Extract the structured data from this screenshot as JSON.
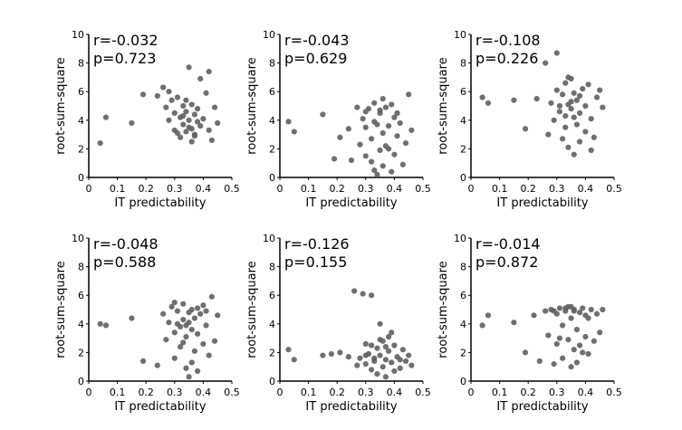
{
  "chart_data": [
    {
      "type": "scatter",
      "xlabel": "IT predictability",
      "ylabel": "root-sum-square",
      "xlim": [
        0,
        0.5
      ],
      "ylim": [
        0,
        10
      ],
      "xticks": [
        "0",
        "0.1",
        "0.2",
        "0.3",
        "0.4",
        "0.5"
      ],
      "yticks": [
        "0",
        "2",
        "4",
        "6",
        "8",
        "10"
      ],
      "annotations": [
        "r=-0.032",
        "p=0.723"
      ],
      "point_color": "#5f5f5f",
      "points": [
        [
          0.04,
          2.4
        ],
        [
          0.06,
          4.2
        ],
        [
          0.15,
          3.8
        ],
        [
          0.19,
          5.8
        ],
        [
          0.24,
          5.7
        ],
        [
          0.26,
          6.3
        ],
        [
          0.27,
          4.9
        ],
        [
          0.28,
          6.0
        ],
        [
          0.29,
          5.4
        ],
        [
          0.3,
          3.3
        ],
        [
          0.3,
          4.5
        ],
        [
          0.31,
          3.1
        ],
        [
          0.32,
          4.2
        ],
        [
          0.32,
          2.8
        ],
        [
          0.33,
          5.0
        ],
        [
          0.33,
          3.7
        ],
        [
          0.34,
          4.6
        ],
        [
          0.34,
          3.2
        ],
        [
          0.35,
          7.7
        ],
        [
          0.35,
          4.0
        ],
        [
          0.36,
          5.1
        ],
        [
          0.36,
          3.4
        ],
        [
          0.37,
          4.4
        ],
        [
          0.37,
          2.9
        ],
        [
          0.38,
          3.9
        ],
        [
          0.38,
          4.8
        ],
        [
          0.39,
          3.6
        ],
        [
          0.4,
          4.1
        ],
        [
          0.41,
          5.9
        ],
        [
          0.42,
          7.4
        ],
        [
          0.42,
          3.3
        ],
        [
          0.43,
          2.6
        ],
        [
          0.44,
          4.9
        ],
        [
          0.45,
          3.8
        ],
        [
          0.35,
          3.5
        ],
        [
          0.33,
          4.3
        ],
        [
          0.36,
          2.5
        ],
        [
          0.31,
          5.6
        ],
        [
          0.28,
          4.0
        ],
        [
          0.39,
          6.9
        ],
        [
          0.37,
          3.0
        ],
        [
          0.34,
          5.4
        ]
      ]
    },
    {
      "type": "scatter",
      "xlabel": "IT predictability",
      "ylabel": "root-sum-square",
      "xlim": [
        0,
        0.5
      ],
      "ylim": [
        0,
        10
      ],
      "xticks": [
        "0",
        "0.1",
        "0.2",
        "0.3",
        "0.4",
        "0.5"
      ],
      "yticks": [
        "0",
        "2",
        "4",
        "6",
        "8",
        "10"
      ],
      "annotations": [
        "r=-0.043",
        "p=0.629"
      ],
      "point_color": "#5f5f5f",
      "points": [
        [
          0.03,
          3.9
        ],
        [
          0.05,
          3.2
        ],
        [
          0.15,
          4.4
        ],
        [
          0.19,
          1.3
        ],
        [
          0.21,
          2.8
        ],
        [
          0.24,
          3.4
        ],
        [
          0.25,
          1.2
        ],
        [
          0.27,
          4.9
        ],
        [
          0.28,
          2.3
        ],
        [
          0.29,
          4.1
        ],
        [
          0.3,
          3.5
        ],
        [
          0.3,
          1.5
        ],
        [
          0.31,
          4.8
        ],
        [
          0.32,
          2.7
        ],
        [
          0.33,
          0.5
        ],
        [
          0.33,
          5.2
        ],
        [
          0.34,
          3.7
        ],
        [
          0.34,
          0.2
        ],
        [
          0.35,
          4.5
        ],
        [
          0.35,
          1.9
        ],
        [
          0.36,
          3.1
        ],
        [
          0.36,
          0.8
        ],
        [
          0.37,
          4.9
        ],
        [
          0.37,
          2.2
        ],
        [
          0.38,
          3.6
        ],
        [
          0.39,
          5.1
        ],
        [
          0.4,
          1.6
        ],
        [
          0.4,
          4.2
        ],
        [
          0.41,
          2.9
        ],
        [
          0.42,
          3.8
        ],
        [
          0.43,
          0.9
        ],
        [
          0.44,
          2.4
        ],
        [
          0.45,
          5.8
        ],
        [
          0.46,
          3.3
        ],
        [
          0.35,
          4.7
        ],
        [
          0.33,
          3.9
        ],
        [
          0.38,
          2.0
        ],
        [
          0.3,
          4.6
        ],
        [
          0.36,
          5.5
        ],
        [
          0.41,
          4.5
        ],
        [
          0.32,
          1.1
        ],
        [
          0.39,
          0.4
        ]
      ]
    },
    {
      "type": "scatter",
      "xlabel": "IT predictability",
      "ylabel": "root-sum-square",
      "xlim": [
        0,
        0.5
      ],
      "ylim": [
        0,
        10
      ],
      "xticks": [
        "0",
        "0.1",
        "0.2",
        "0.3",
        "0.4",
        "0.5"
      ],
      "yticks": [
        "0",
        "2",
        "4",
        "6",
        "8",
        "10"
      ],
      "annotations": [
        "r=-0.108",
        "p=0.226"
      ],
      "point_color": "#5f5f5f",
      "points": [
        [
          0.04,
          5.6
        ],
        [
          0.06,
          5.2
        ],
        [
          0.15,
          5.4
        ],
        [
          0.19,
          3.4
        ],
        [
          0.23,
          5.5
        ],
        [
          0.26,
          8.0
        ],
        [
          0.27,
          3.0
        ],
        [
          0.28,
          5.2
        ],
        [
          0.29,
          4.0
        ],
        [
          0.3,
          8.7
        ],
        [
          0.3,
          6.1
        ],
        [
          0.31,
          4.6
        ],
        [
          0.32,
          2.7
        ],
        [
          0.32,
          5.8
        ],
        [
          0.33,
          6.6
        ],
        [
          0.33,
          4.3
        ],
        [
          0.34,
          5.1
        ],
        [
          0.34,
          2.1
        ],
        [
          0.35,
          6.9
        ],
        [
          0.35,
          4.8
        ],
        [
          0.36,
          1.6
        ],
        [
          0.36,
          5.9
        ],
        [
          0.37,
          3.7
        ],
        [
          0.37,
          5.4
        ],
        [
          0.38,
          4.5
        ],
        [
          0.38,
          2.5
        ],
        [
          0.39,
          6.2
        ],
        [
          0.4,
          5.0
        ],
        [
          0.4,
          3.2
        ],
        [
          0.41,
          6.5
        ],
        [
          0.42,
          4.1
        ],
        [
          0.43,
          2.8
        ],
        [
          0.44,
          5.6
        ],
        [
          0.45,
          6.1
        ],
        [
          0.46,
          4.9
        ],
        [
          0.35,
          5.3
        ],
        [
          0.33,
          3.5
        ],
        [
          0.38,
          5.7
        ],
        [
          0.31,
          5.0
        ],
        [
          0.36,
          4.2
        ],
        [
          0.42,
          1.9
        ],
        [
          0.34,
          7.0
        ]
      ]
    },
    {
      "type": "scatter",
      "xlabel": "IT predictability",
      "ylabel": "root-sum-square",
      "xlim": [
        0,
        0.5
      ],
      "ylim": [
        0,
        10
      ],
      "xticks": [
        "0",
        "0.1",
        "0.2",
        "0.3",
        "0.4",
        "0.5"
      ],
      "yticks": [
        "0",
        "2",
        "4",
        "6",
        "8",
        "10"
      ],
      "annotations": [
        "r=-0.048",
        "p=0.588"
      ],
      "point_color": "#5f5f5f",
      "points": [
        [
          0.04,
          4.0
        ],
        [
          0.06,
          3.9
        ],
        [
          0.15,
          4.4
        ],
        [
          0.19,
          1.4
        ],
        [
          0.24,
          1.1
        ],
        [
          0.26,
          4.7
        ],
        [
          0.27,
          2.9
        ],
        [
          0.28,
          4.1
        ],
        [
          0.29,
          5.2
        ],
        [
          0.3,
          3.4
        ],
        [
          0.3,
          1.6
        ],
        [
          0.31,
          4.9
        ],
        [
          0.32,
          3.8
        ],
        [
          0.32,
          2.4
        ],
        [
          0.33,
          5.4
        ],
        [
          0.33,
          4.3
        ],
        [
          0.34,
          3.1
        ],
        [
          0.34,
          0.9
        ],
        [
          0.35,
          4.8
        ],
        [
          0.35,
          0.3
        ],
        [
          0.36,
          3.6
        ],
        [
          0.36,
          5.0
        ],
        [
          0.37,
          2.1
        ],
        [
          0.37,
          4.4
        ],
        [
          0.38,
          0.7
        ],
        [
          0.38,
          3.3
        ],
        [
          0.39,
          4.7
        ],
        [
          0.4,
          2.6
        ],
        [
          0.4,
          5.3
        ],
        [
          0.41,
          3.9
        ],
        [
          0.42,
          1.8
        ],
        [
          0.43,
          5.9
        ],
        [
          0.44,
          2.8
        ],
        [
          0.45,
          4.6
        ],
        [
          0.35,
          4.1
        ],
        [
          0.33,
          2.7
        ],
        [
          0.38,
          5.1
        ],
        [
          0.31,
          4.0
        ],
        [
          0.36,
          1.3
        ],
        [
          0.41,
          4.9
        ],
        [
          0.3,
          5.5
        ],
        [
          0.34,
          3.9
        ]
      ]
    },
    {
      "type": "scatter",
      "xlabel": "IT predictability",
      "ylabel": "root-sum-square",
      "xlim": [
        0,
        0.5
      ],
      "ylim": [
        0,
        10
      ],
      "xticks": [
        "0",
        "0.1",
        "0.2",
        "0.3",
        "0.4",
        "0.5"
      ],
      "yticks": [
        "0",
        "2",
        "4",
        "6",
        "8",
        "10"
      ],
      "annotations": [
        "r=-0.126",
        "p=0.155"
      ],
      "point_color": "#5f5f5f",
      "points": [
        [
          0.03,
          2.2
        ],
        [
          0.05,
          1.5
        ],
        [
          0.15,
          1.8
        ],
        [
          0.18,
          1.9
        ],
        [
          0.21,
          2.0
        ],
        [
          0.24,
          1.7
        ],
        [
          0.26,
          6.3
        ],
        [
          0.27,
          1.1
        ],
        [
          0.28,
          1.6
        ],
        [
          0.29,
          6.1
        ],
        [
          0.3,
          2.6
        ],
        [
          0.3,
          1.2
        ],
        [
          0.31,
          1.9
        ],
        [
          0.32,
          0.8
        ],
        [
          0.32,
          6.0
        ],
        [
          0.33,
          1.4
        ],
        [
          0.34,
          2.3
        ],
        [
          0.34,
          0.5
        ],
        [
          0.35,
          1.8
        ],
        [
          0.35,
          4.0
        ],
        [
          0.36,
          1.0
        ],
        [
          0.36,
          2.8
        ],
        [
          0.37,
          1.5
        ],
        [
          0.37,
          0.3
        ],
        [
          0.38,
          2.1
        ],
        [
          0.38,
          3.1
        ],
        [
          0.39,
          1.3
        ],
        [
          0.4,
          0.7
        ],
        [
          0.4,
          2.5
        ],
        [
          0.41,
          1.7
        ],
        [
          0.42,
          0.9
        ],
        [
          0.43,
          2.2
        ],
        [
          0.44,
          1.4
        ],
        [
          0.45,
          1.8
        ],
        [
          0.46,
          1.1
        ],
        [
          0.33,
          1.6
        ],
        [
          0.35,
          2.9
        ],
        [
          0.3,
          1.8
        ],
        [
          0.37,
          2.4
        ],
        [
          0.42,
          1.5
        ],
        [
          0.32,
          2.5
        ],
        [
          0.39,
          3.4
        ]
      ]
    },
    {
      "type": "scatter",
      "xlabel": "IT predictability",
      "ylabel": "root-sum-square",
      "xlim": [
        0,
        0.5
      ],
      "ylim": [
        0,
        10
      ],
      "xticks": [
        "0",
        "0.1",
        "0.2",
        "0.3",
        "0.4",
        "0.5"
      ],
      "yticks": [
        "0",
        "2",
        "4",
        "6",
        "8",
        "10"
      ],
      "annotations": [
        "r=-0.014",
        "p=0.872"
      ],
      "point_color": "#5f5f5f",
      "points": [
        [
          0.04,
          3.9
        ],
        [
          0.06,
          4.6
        ],
        [
          0.15,
          4.1
        ],
        [
          0.19,
          2.0
        ],
        [
          0.22,
          4.6
        ],
        [
          0.24,
          1.4
        ],
        [
          0.26,
          4.9
        ],
        [
          0.27,
          3.2
        ],
        [
          0.28,
          5.0
        ],
        [
          0.29,
          1.2
        ],
        [
          0.3,
          4.7
        ],
        [
          0.3,
          2.6
        ],
        [
          0.31,
          5.1
        ],
        [
          0.32,
          3.9
        ],
        [
          0.32,
          1.6
        ],
        [
          0.33,
          4.9
        ],
        [
          0.34,
          2.9
        ],
        [
          0.34,
          5.2
        ],
        [
          0.35,
          1.0
        ],
        [
          0.35,
          4.4
        ],
        [
          0.36,
          2.2
        ],
        [
          0.36,
          5.0
        ],
        [
          0.37,
          3.6
        ],
        [
          0.37,
          1.3
        ],
        [
          0.38,
          4.8
        ],
        [
          0.38,
          2.5
        ],
        [
          0.39,
          5.1
        ],
        [
          0.4,
          3.1
        ],
        [
          0.4,
          4.6
        ],
        [
          0.41,
          1.9
        ],
        [
          0.42,
          5.0
        ],
        [
          0.43,
          2.8
        ],
        [
          0.44,
          4.7
        ],
        [
          0.45,
          3.4
        ],
        [
          0.46,
          5.0
        ],
        [
          0.33,
          5.1
        ],
        [
          0.36,
          4.9
        ],
        [
          0.31,
          3.0
        ],
        [
          0.39,
          2.0
        ],
        [
          0.35,
          5.2
        ],
        [
          0.29,
          4.9
        ],
        [
          0.41,
          4.4
        ]
      ]
    }
  ]
}
